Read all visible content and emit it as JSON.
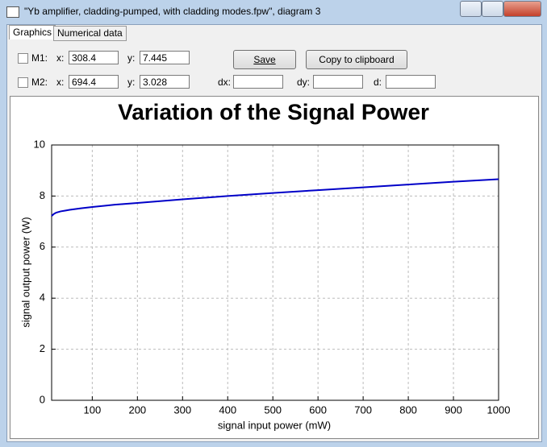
{
  "window": {
    "title": "\"Yb amplifier, cladding-pumped, with cladding modes.fpw\", diagram 3"
  },
  "tabs": [
    "Graphics",
    "Numerical data"
  ],
  "markers": [
    {
      "label": "M1:",
      "x_label": "x:",
      "x": "308.4",
      "y_label": "y:",
      "y": "7.445"
    },
    {
      "label": "M2:",
      "x_label": "x:",
      "x": "694.4",
      "y_label": "y:",
      "y": "3.028"
    }
  ],
  "deltas": [
    "dx:",
    "dy:",
    "d:"
  ],
  "buttons": {
    "save": "Save",
    "copy": "Copy to clipboard"
  },
  "chart_data": {
    "type": "line",
    "title": "Variation of the Signal Power",
    "x_label": "signal input power (mW)",
    "y_label": "signal output power (W)",
    "x": [
      10,
      15,
      20,
      30,
      40,
      50,
      75,
      100,
      150,
      200,
      300,
      400,
      500,
      600,
      700,
      800,
      900,
      1000
    ],
    "values": [
      7.22,
      7.3,
      7.35,
      7.4,
      7.43,
      7.46,
      7.52,
      7.57,
      7.66,
      7.73,
      7.87,
      8.0,
      8.12,
      8.23,
      8.34,
      8.45,
      8.56,
      8.66
    ],
    "color": "#0000c8",
    "xlim": [
      10,
      1000
    ],
    "xticks": [
      100,
      200,
      300,
      400,
      500,
      600,
      700,
      800,
      900,
      1000
    ],
    "ylim": [
      0,
      10
    ],
    "yticks": [
      0,
      2,
      4,
      6,
      8,
      10
    ],
    "grid": true
  }
}
